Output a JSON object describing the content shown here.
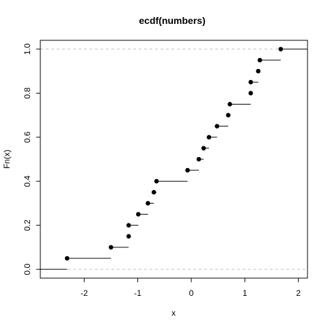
{
  "chart_data": {
    "type": "step",
    "title": "ecdf(numbers)",
    "xlabel": "x",
    "ylabel": "Fn(x)",
    "xlim": [
      -2.82,
      2.17
    ],
    "ylim": [
      -0.04,
      1.04
    ],
    "x_ticks": [
      {
        "value": -2,
        "label": "-2"
      },
      {
        "value": -1,
        "label": "-1"
      },
      {
        "value": 0,
        "label": "0"
      },
      {
        "value": 1,
        "label": "1"
      },
      {
        "value": 2,
        "label": "2"
      }
    ],
    "y_ticks": [
      {
        "value": 0.0,
        "label": "0.0"
      },
      {
        "value": 0.2,
        "label": "0.2"
      },
      {
        "value": 0.4,
        "label": "0.4"
      },
      {
        "value": 0.6,
        "label": "0.6"
      },
      {
        "value": 0.8,
        "label": "0.8"
      },
      {
        "value": 1.0,
        "label": "1.0"
      }
    ],
    "reference_lines": [
      0,
      1
    ],
    "points": [
      {
        "x": -2.32,
        "y": 0.05
      },
      {
        "x": -1.5,
        "y": 0.1
      },
      {
        "x": -1.17,
        "y": 0.15
      },
      {
        "x": -1.17,
        "y": 0.2
      },
      {
        "x": -0.99,
        "y": 0.25
      },
      {
        "x": -0.81,
        "y": 0.3
      },
      {
        "x": -0.7,
        "y": 0.35
      },
      {
        "x": -0.65,
        "y": 0.4
      },
      {
        "x": -0.07,
        "y": 0.45
      },
      {
        "x": 0.14,
        "y": 0.5
      },
      {
        "x": 0.23,
        "y": 0.55
      },
      {
        "x": 0.33,
        "y": 0.6
      },
      {
        "x": 0.48,
        "y": 0.65
      },
      {
        "x": 0.69,
        "y": 0.7
      },
      {
        "x": 0.72,
        "y": 0.75
      },
      {
        "x": 1.11,
        "y": 0.8
      },
      {
        "x": 1.11,
        "y": 0.85
      },
      {
        "x": 1.25,
        "y": 0.9
      },
      {
        "x": 1.28,
        "y": 0.95
      },
      {
        "x": 1.67,
        "y": 1.0
      }
    ]
  }
}
